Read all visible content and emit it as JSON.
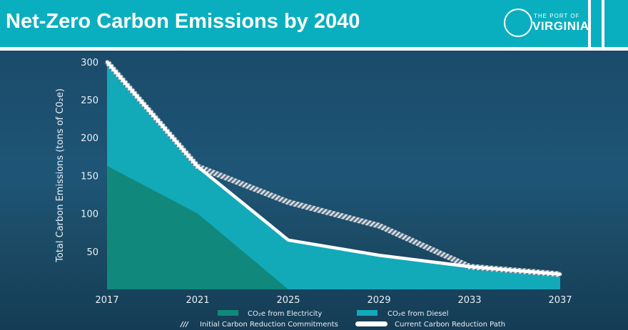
{
  "header": {
    "title": "Net-Zero Carbon Emissions by 2040",
    "logo_line1": "THE PORT OF",
    "logo_line2": "VIRGINIA"
  },
  "colors": {
    "header": "#0aafbf",
    "electricity": "#10897c",
    "diesel": "#12aab9",
    "current_path": "#ffffff",
    "initial_path": "#9aa8b4"
  },
  "chart_data": {
    "type": "area",
    "title": "",
    "xlabel": "",
    "ylabel": "Total Carbon Emissions (tons of C0₂e)",
    "x": [
      2017,
      2021,
      2025,
      2029,
      2033,
      2037
    ],
    "x_ticks": [
      "2017",
      "2021",
      "2025",
      "2029",
      "2033",
      "2037"
    ],
    "y_ticks": [
      "50",
      "100",
      "150",
      "200",
      "250",
      "300"
    ],
    "ylim": [
      0,
      300
    ],
    "stacked": true,
    "series": [
      {
        "name": "CO₂e from Electricity",
        "kind": "area",
        "values": [
          163,
          100,
          0,
          0,
          0,
          0
        ]
      },
      {
        "name": "CO₂e from Diesel",
        "kind": "area",
        "values": [
          137,
          62,
          65,
          45,
          30,
          20
        ]
      },
      {
        "name": "Initial Carbon Reduction Commitments",
        "kind": "line",
        "style": "hatched",
        "values": [
          300,
          162,
          115,
          84,
          30,
          20
        ]
      },
      {
        "name": "Current Carbon Reduction Path",
        "kind": "line",
        "style": "solid",
        "values": [
          300,
          162,
          65,
          45,
          30,
          20
        ]
      }
    ],
    "grid": false,
    "legend_placement": "bottom"
  }
}
